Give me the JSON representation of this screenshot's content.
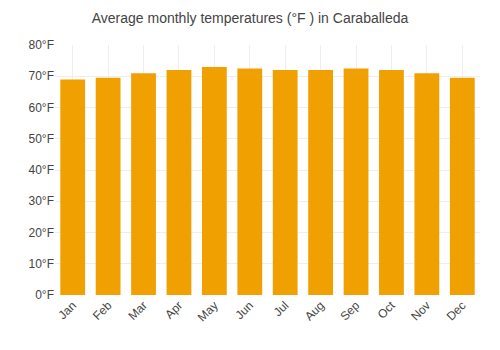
{
  "chart_data": {
    "type": "bar",
    "title": "Average monthly temperatures (°F ) in Caraballeda",
    "categories": [
      "Jan",
      "Feb",
      "Mar",
      "Apr",
      "May",
      "Jun",
      "Jul",
      "Aug",
      "Sep",
      "Oct",
      "Nov",
      "Dec"
    ],
    "values": [
      69,
      69.5,
      71,
      72,
      73,
      72.5,
      72,
      72,
      72.5,
      72,
      71,
      69.5
    ],
    "color": "#F0A000",
    "ylim": [
      0,
      80
    ],
    "yticks": [
      {
        "value": 0,
        "label": "0°F"
      },
      {
        "value": 10,
        "label": "10°F"
      },
      {
        "value": 20,
        "label": "20°F"
      },
      {
        "value": 30,
        "label": "30°F"
      },
      {
        "value": 40,
        "label": "40°F"
      },
      {
        "value": 50,
        "label": "50°F"
      },
      {
        "value": 60,
        "label": "60°F"
      },
      {
        "value": 70,
        "label": "70°F"
      },
      {
        "value": 80,
        "label": "80°F"
      }
    ],
    "grid": true
  }
}
